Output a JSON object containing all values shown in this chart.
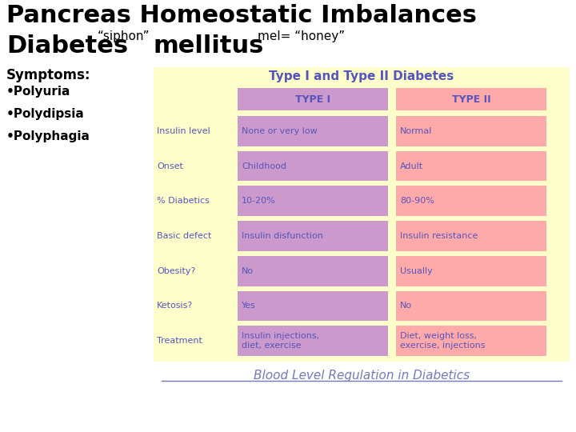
{
  "title_line1": "Pancreas Homeostatic Imbalances",
  "symptoms_title": "Symptoms:",
  "symptoms": [
    "•Polyuria",
    "•Polydipsia",
    "•Polyphagia"
  ],
  "table_title": "Type I and Type II Diabetes",
  "table_title_color": "#5555bb",
  "table_bg": "#ffffcc",
  "col1_bg": "#cc99cc",
  "col2_bg": "#ffaaaa",
  "row_labels": [
    "Insulin level",
    "Onset",
    "% Diabetics",
    "Basic defect",
    "Obesity?",
    "Ketosis?",
    "Treatment"
  ],
  "col1_header": "TYPE I",
  "col2_header": "TYPE II",
  "col1_data": [
    "None or very low",
    "Childhood",
    "10-20%",
    "Insulin disfunction",
    "No",
    "Yes",
    "Insulin injections,\ndiet, exercise"
  ],
  "col2_data": [
    "Normal",
    "Adult",
    "80-90%",
    "Insulin resistance",
    "Usually",
    "No",
    "Diet, weight loss,\nexercise, injections"
  ],
  "table_text_color": "#5555bb",
  "footer_text": "Blood Level Regulation in Diabetics",
  "footer_color": "#7777bb",
  "bg_color": "#ffffff",
  "symptoms_text_color": "#000000"
}
